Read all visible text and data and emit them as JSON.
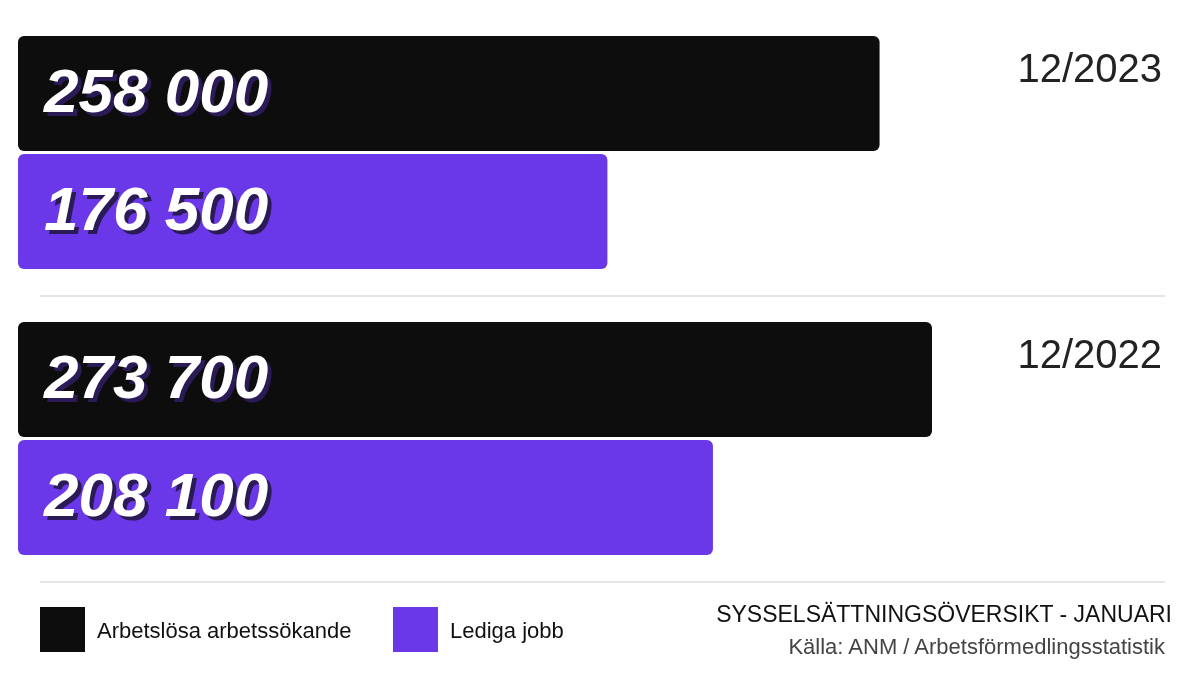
{
  "chart_data": [
    {
      "type": "bar",
      "orientation": "horizontal",
      "categories": [
        "12/2023"
      ],
      "series": [
        {
          "color": "#0d0d0d",
          "values": [
            258000
          ],
          "value_labels": [
            "258 000"
          ]
        },
        {
          "color": "#6a38e8",
          "values": [
            176500
          ],
          "value_labels": [
            "176 500"
          ]
        }
      ]
    },
    {
      "type": "bar",
      "orientation": "horizontal",
      "title": "SYSSELSÄTTNINGSÖVERSIKT - JANUARI",
      "annotations": [
        "Källa: ANM / Arbetsförmedlingsstatistik"
      ],
      "categories": [
        "12/2022"
      ],
      "series": [
        {
          "name": "Arbetslösa arbetssökande",
          "color": "#0d0d0d",
          "values": [
            273700
          ],
          "value_labels": [
            "273 700"
          ]
        },
        {
          "name": "Lediga jobb",
          "color": "#6a38e8",
          "values": [
            208100
          ],
          "value_labels": [
            "208 100"
          ]
        }
      ],
      "legend": "bottom left"
    }
  ]
}
